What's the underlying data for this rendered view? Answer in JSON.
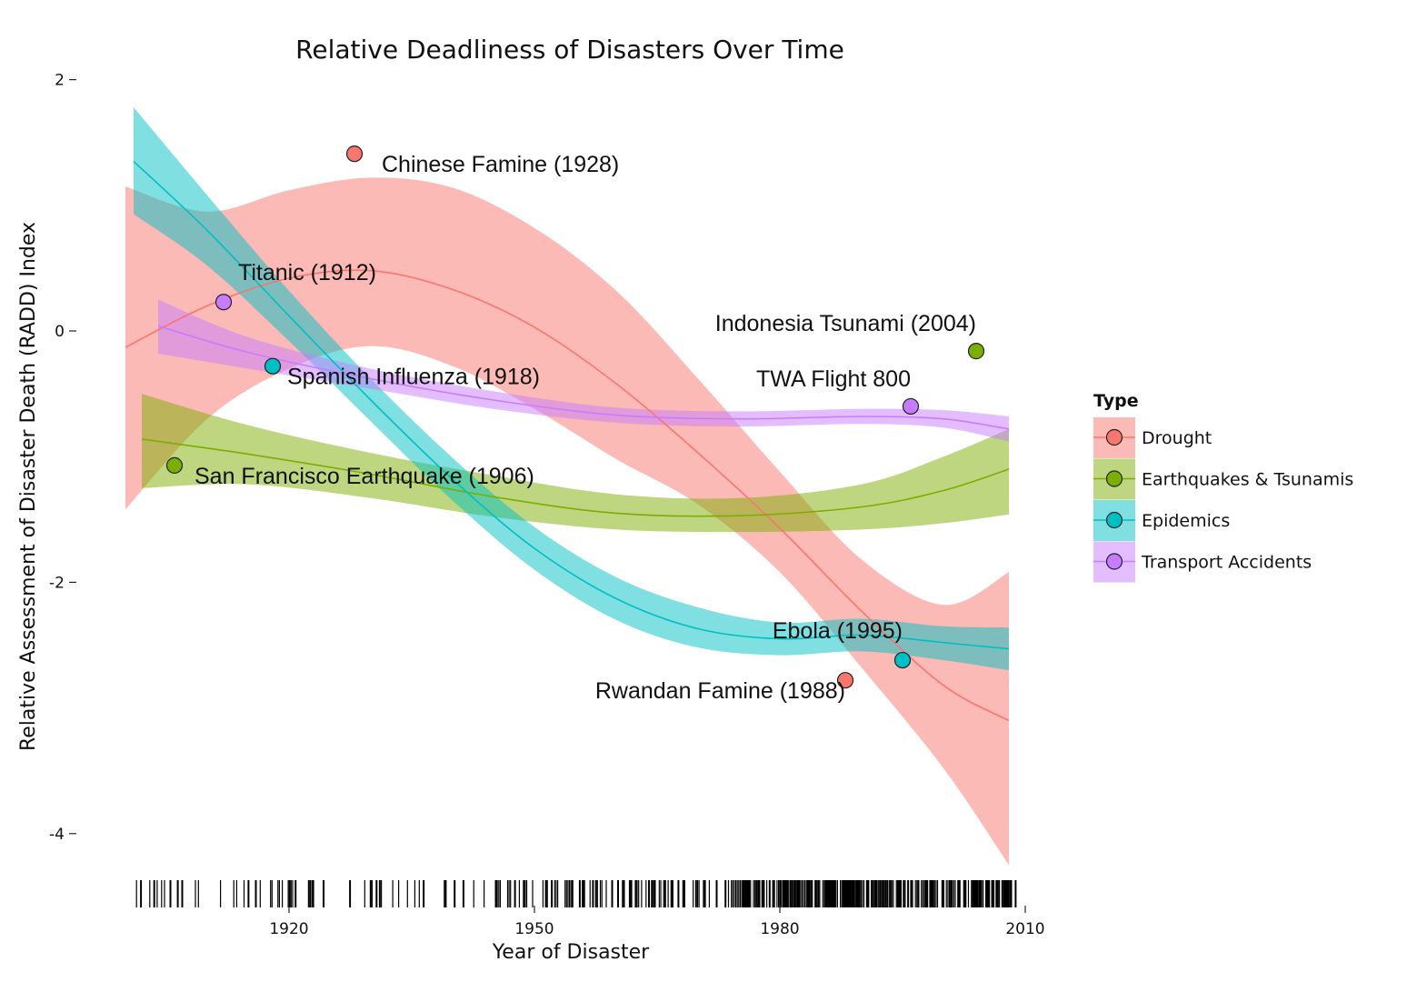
{
  "chart_data": {
    "type": "scatter",
    "title": "Relative Deadliness of Disasters Over Time",
    "xlabel": "Year of Disaster",
    "ylabel": "Relative Assessment of Disaster Death (RADD) Index",
    "xlim": [
      1900,
      2010
    ],
    "ylim": [
      -4.2,
      2.0
    ],
    "x_ticks": [
      1920,
      1950,
      1980,
      2010
    ],
    "y_ticks": [
      2,
      0,
      -2,
      -4
    ],
    "grid": false,
    "legend_position": "right",
    "legend_title": "Type",
    "series": [
      {
        "name": "Drought",
        "color": "#F8766D",
        "points": [
          {
            "x": 1928,
            "y": 1.41,
            "label": "Chinese Famine (1928)"
          },
          {
            "x": 1988,
            "y": -2.78,
            "label": "Rwandan Famine (1988)"
          }
        ],
        "smooth": [
          {
            "x": 1900,
            "y": -0.13,
            "lo": -1.42,
            "hi": 1.15
          },
          {
            "x": 1910,
            "y": 0.2,
            "lo": -0.7,
            "hi": 0.95
          },
          {
            "x": 1920,
            "y": 0.42,
            "lo": -0.3,
            "hi": 1.12
          },
          {
            "x": 1930,
            "y": 0.48,
            "lo": -0.12,
            "hi": 1.22
          },
          {
            "x": 1940,
            "y": 0.33,
            "lo": -0.28,
            "hi": 1.14
          },
          {
            "x": 1950,
            "y": 0.03,
            "lo": -0.62,
            "hi": 0.82
          },
          {
            "x": 1960,
            "y": -0.42,
            "lo": -1.02,
            "hi": 0.32
          },
          {
            "x": 1970,
            "y": -0.97,
            "lo": -1.38,
            "hi": -0.38
          },
          {
            "x": 1980,
            "y": -1.57,
            "lo": -1.92,
            "hi": -1.12
          },
          {
            "x": 1990,
            "y": -2.23,
            "lo": -2.68,
            "hi": -1.82
          },
          {
            "x": 2000,
            "y": -2.82,
            "lo": -3.48,
            "hi": -2.18
          },
          {
            "x": 2008,
            "y": -3.1,
            "lo": -4.25,
            "hi": -1.92
          }
        ]
      },
      {
        "name": "Earthquakes & Tsunamis",
        "color": "#7CAE00",
        "points": [
          {
            "x": 1906,
            "y": -1.07,
            "label": "San Francisco Earthquake (1906)"
          },
          {
            "x": 2004,
            "y": -0.16,
            "label": "Indonesia Tsunami (2004)"
          }
        ],
        "smooth": [
          {
            "x": 1902,
            "y": -0.86,
            "lo": -1.25,
            "hi": -0.5
          },
          {
            "x": 1915,
            "y": -0.98,
            "lo": -1.22,
            "hi": -0.75
          },
          {
            "x": 1930,
            "y": -1.14,
            "lo": -1.33,
            "hi": -0.97
          },
          {
            "x": 1945,
            "y": -1.32,
            "lo": -1.48,
            "hi": -1.15
          },
          {
            "x": 1960,
            "y": -1.45,
            "lo": -1.58,
            "hi": -1.3
          },
          {
            "x": 1975,
            "y": -1.47,
            "lo": -1.6,
            "hi": -1.33
          },
          {
            "x": 1990,
            "y": -1.4,
            "lo": -1.58,
            "hi": -1.22
          },
          {
            "x": 2000,
            "y": -1.27,
            "lo": -1.53,
            "hi": -1.0
          },
          {
            "x": 2008,
            "y": -1.1,
            "lo": -1.46,
            "hi": -0.78
          }
        ]
      },
      {
        "name": "Epidemics",
        "color": "#00BFC4",
        "points": [
          {
            "x": 1918,
            "y": -0.28,
            "label": "Spanish Influenza (1918)"
          },
          {
            "x": 1995,
            "y": -2.62,
            "label": "Ebola (1995)"
          }
        ],
        "smooth": [
          {
            "x": 1901,
            "y": 1.35,
            "lo": 0.93,
            "hi": 1.78
          },
          {
            "x": 1910,
            "y": 0.8,
            "lo": 0.52,
            "hi": 1.08
          },
          {
            "x": 1920,
            "y": 0.12,
            "lo": -0.08,
            "hi": 0.32
          },
          {
            "x": 1930,
            "y": -0.55,
            "lo": -0.72,
            "hi": -0.38
          },
          {
            "x": 1940,
            "y": -1.18,
            "lo": -1.35,
            "hi": -1.01
          },
          {
            "x": 1950,
            "y": -1.73,
            "lo": -1.9,
            "hi": -1.56
          },
          {
            "x": 1960,
            "y": -2.13,
            "lo": -2.3,
            "hi": -1.96
          },
          {
            "x": 1970,
            "y": -2.37,
            "lo": -2.52,
            "hi": -2.2
          },
          {
            "x": 1980,
            "y": -2.45,
            "lo": -2.58,
            "hi": -2.32
          },
          {
            "x": 1990,
            "y": -2.42,
            "lo": -2.55,
            "hi": -2.29
          },
          {
            "x": 2000,
            "y": -2.48,
            "lo": -2.62,
            "hi": -2.35
          },
          {
            "x": 2008,
            "y": -2.53,
            "lo": -2.7,
            "hi": -2.36
          }
        ]
      },
      {
        "name": "Transport Accidents",
        "color": "#C77CFF",
        "points": [
          {
            "x": 1912,
            "y": 0.23,
            "label": "Titanic (1912)"
          },
          {
            "x": 1996,
            "y": -0.6,
            "label": "TWA Flight 800"
          }
        ],
        "smooth": [
          {
            "x": 1904,
            "y": 0.04,
            "lo": -0.18,
            "hi": 0.25
          },
          {
            "x": 1915,
            "y": -0.17,
            "lo": -0.3,
            "hi": -0.05
          },
          {
            "x": 1930,
            "y": -0.38,
            "lo": -0.46,
            "hi": -0.3
          },
          {
            "x": 1945,
            "y": -0.55,
            "lo": -0.62,
            "hi": -0.48
          },
          {
            "x": 1960,
            "y": -0.67,
            "lo": -0.73,
            "hi": -0.61
          },
          {
            "x": 1975,
            "y": -0.7,
            "lo": -0.76,
            "hi": -0.64
          },
          {
            "x": 1990,
            "y": -0.68,
            "lo": -0.74,
            "hi": -0.62
          },
          {
            "x": 2000,
            "y": -0.7,
            "lo": -0.77,
            "hi": -0.63
          },
          {
            "x": 2008,
            "y": -0.78,
            "lo": -0.88,
            "hi": -0.68
          }
        ]
      }
    ]
  }
}
